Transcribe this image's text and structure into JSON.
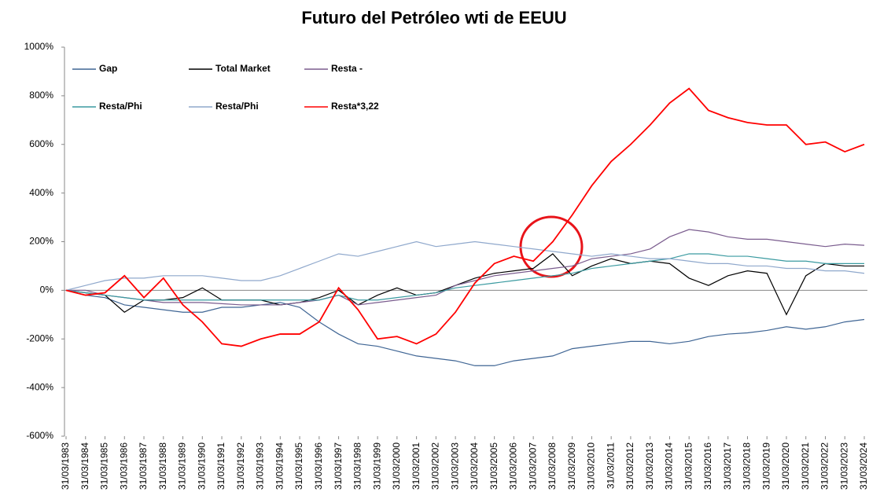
{
  "chart_data": {
    "type": "line",
    "title": "Futuro del Petróleo wti de EEUU",
    "categories": [
      "31/03/1983",
      "31/03/1984",
      "31/03/1985",
      "31/03/1986",
      "31/03/1987",
      "31/03/1988",
      "31/03/1989",
      "31/03/1990",
      "31/03/1991",
      "31/03/1992",
      "31/03/1993",
      "31/03/1994",
      "31/03/1995",
      "31/03/1996",
      "31/03/1997",
      "31/03/1998",
      "31/03/1999",
      "31/03/2000",
      "31/03/2001",
      "31/03/2002",
      "31/03/2003",
      "31/03/2004",
      "31/03/2005",
      "31/03/2006",
      "31/03/2007",
      "31/03/2008",
      "31/03/2009",
      "31/03/2010",
      "31/03/2011",
      "31/03/2012",
      "31/03/2013",
      "31/03/2014",
      "31/03/2015",
      "31/03/2016",
      "31/03/2017",
      "31/03/2018",
      "31/03/2019",
      "31/03/2020",
      "31/03/2021",
      "31/03/2022",
      "31/03/2023",
      "31/03/2024"
    ],
    "series": [
      {
        "name": "Gap",
        "color": "#3f6594",
        "values": [
          0,
          -20,
          -30,
          -60,
          -70,
          -80,
          -90,
          -90,
          -70,
          -70,
          -60,
          -50,
          -70,
          -130,
          -180,
          -220,
          -230,
          -250,
          -270,
          -280,
          -290,
          -310,
          -310,
          -290,
          -280,
          -270,
          -240,
          -230,
          -220,
          -210,
          -210,
          -220,
          -210,
          -190,
          -180,
          -175,
          -165,
          -150,
          -160,
          -150,
          -130,
          -120
        ]
      },
      {
        "name": "Total Market",
        "color": "#000000",
        "values": [
          0,
          -10,
          -20,
          -90,
          -40,
          -40,
          -30,
          10,
          -40,
          -40,
          -40,
          -60,
          -50,
          -30,
          0,
          -60,
          -20,
          10,
          -20,
          -10,
          20,
          50,
          70,
          80,
          90,
          150,
          60,
          100,
          130,
          110,
          120,
          110,
          50,
          20,
          60,
          80,
          70,
          -100,
          60,
          110,
          100,
          100
        ]
      },
      {
        "name": "Resta -",
        "color": "#7a5c8e",
        "values": [
          0,
          0,
          -20,
          -30,
          -40,
          -50,
          -50,
          -50,
          -55,
          -60,
          -60,
          -60,
          -50,
          -40,
          -20,
          -60,
          -50,
          -40,
          -30,
          -20,
          20,
          40,
          60,
          70,
          80,
          90,
          100,
          130,
          140,
          150,
          170,
          220,
          250,
          240,
          220,
          210,
          210,
          200,
          190,
          180,
          190,
          185
        ]
      },
      {
        "name": "Resta/Phi",
        "color": "#3a9aa0",
        "values": [
          0,
          -10,
          -20,
          -30,
          -40,
          -40,
          -40,
          -40,
          -40,
          -40,
          -40,
          -40,
          -40,
          -40,
          -20,
          -40,
          -40,
          -30,
          -20,
          -10,
          10,
          20,
          30,
          40,
          50,
          60,
          70,
          90,
          100,
          110,
          120,
          130,
          150,
          150,
          140,
          140,
          130,
          120,
          120,
          110,
          110,
          110
        ]
      },
      {
        "name": "Resta/Phi",
        "color": "#8fa8cc",
        "values": [
          0,
          20,
          40,
          50,
          50,
          60,
          60,
          60,
          50,
          40,
          40,
          60,
          90,
          120,
          150,
          140,
          160,
          180,
          200,
          180,
          190,
          200,
          190,
          180,
          170,
          160,
          150,
          140,
          150,
          140,
          130,
          130,
          120,
          110,
          110,
          100,
          100,
          90,
          90,
          80,
          80,
          70
        ]
      },
      {
        "name": "Resta*3,22",
        "color": "#ff0000",
        "values": [
          0,
          -20,
          -10,
          60,
          -30,
          50,
          -60,
          -130,
          -220,
          -230,
          -200,
          -180,
          -180,
          -130,
          10,
          -80,
          -200,
          -190,
          -220,
          -180,
          -90,
          30,
          110,
          140,
          120,
          200,
          310,
          430,
          530,
          600,
          680,
          770,
          830,
          740,
          710,
          690,
          680,
          680,
          600,
          610,
          570,
          600
        ]
      }
    ],
    "ylim": [
      -600,
      1000
    ],
    "yticks": [
      {
        "value": -600,
        "label": "-600%"
      },
      {
        "value": -400,
        "label": "-400%"
      },
      {
        "value": -200,
        "label": "-200%"
      },
      {
        "value": 0,
        "label": "0%"
      },
      {
        "value": 200,
        "label": "200%"
      },
      {
        "value": 400,
        "label": "400%"
      },
      {
        "value": 600,
        "label": "600%"
      },
      {
        "value": 800,
        "label": "800%"
      },
      {
        "value": 1000,
        "label": "1000%"
      }
    ],
    "grid": false
  }
}
